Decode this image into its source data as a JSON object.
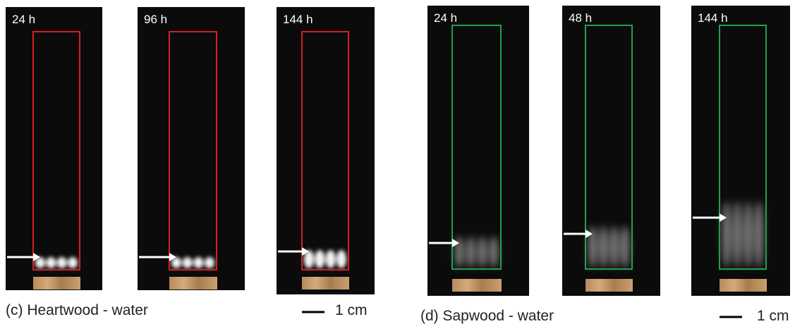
{
  "panels": [
    {
      "caption": "(c) Heartwood - water",
      "scale_label": "1 cm",
      "images": [
        {
          "label": "24 h"
        },
        {
          "label": "96 h"
        },
        {
          "label": "144 h"
        }
      ]
    },
    {
      "caption": "(d) Sapwood - water",
      "scale_label": "1 cm",
      "images": [
        {
          "label": "24 h"
        },
        {
          "label": "48 h"
        },
        {
          "label": "144 h"
        }
      ]
    }
  ]
}
